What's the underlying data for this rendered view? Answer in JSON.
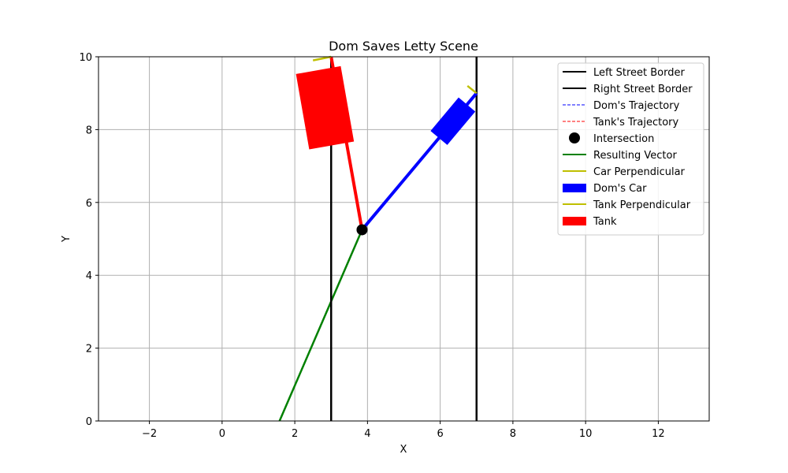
{
  "chart_data": {
    "type": "line",
    "title": "Dom Saves Letty Scene",
    "xlabel": "X",
    "ylabel": "Y",
    "xlim": [
      -3.4,
      13.4
    ],
    "ylim": [
      0,
      10
    ],
    "grid": true,
    "legend_position": "top-right",
    "x_ticks": [
      -2,
      0,
      2,
      4,
      6,
      8,
      10,
      12
    ],
    "y_ticks": [
      0,
      2,
      4,
      6,
      8,
      10
    ],
    "x_tick_labels": [
      "−2",
      "0",
      "2",
      "4",
      "6",
      "8",
      "10",
      "12"
    ],
    "y_tick_labels": [
      "0",
      "2",
      "4",
      "6",
      "8",
      "10"
    ],
    "series": [
      {
        "name": "Left Street Border",
        "kind": "line",
        "color": "#000000",
        "style": "solid",
        "x": [
          3,
          3
        ],
        "y": [
          0,
          10
        ]
      },
      {
        "name": "Right Street Border",
        "kind": "line",
        "color": "#000000",
        "style": "solid",
        "x": [
          7,
          7
        ],
        "y": [
          0,
          10
        ]
      },
      {
        "name": "Dom's Trajectory",
        "kind": "line",
        "color": "#0000ff",
        "style": "dashed",
        "x": [
          3.85,
          7.0
        ],
        "y": [
          5.25,
          9.0
        ]
      },
      {
        "name": "Tank's Trajectory",
        "kind": "line",
        "color": "#ff0000",
        "style": "dashed",
        "x": [
          3.0,
          3.85
        ],
        "y": [
          10.0,
          5.25
        ]
      },
      {
        "name": "Intersection",
        "kind": "point",
        "color": "#000000",
        "x": [
          3.85
        ],
        "y": [
          5.25
        ]
      },
      {
        "name": "Resulting Vector",
        "kind": "line",
        "color": "#008000",
        "style": "solid",
        "x": [
          1.58,
          3.85
        ],
        "y": [
          0,
          5.25
        ]
      },
      {
        "name": "Car Perpendicular",
        "kind": "line",
        "color": "#bfbf00",
        "style": "solid",
        "x": [
          6.75,
          7.0
        ],
        "y": [
          9.2,
          9.0
        ]
      },
      {
        "name": "Dom's Car",
        "kind": "rect",
        "color": "#0000ff",
        "center": [
          6.35,
          8.23
        ],
        "length": 1.2,
        "width": 0.6,
        "angle_deg": 50
      },
      {
        "name": "Tank Perpendicular",
        "kind": "line",
        "color": "#bfbf00",
        "style": "solid",
        "x": [
          2.5,
          3.0
        ],
        "y": [
          9.9,
          10.0
        ]
      },
      {
        "name": "Tank",
        "kind": "rect",
        "color": "#ff0000",
        "center": [
          2.83,
          8.6
        ],
        "length": 2.1,
        "width": 1.25,
        "angle_deg": -80
      }
    ]
  }
}
